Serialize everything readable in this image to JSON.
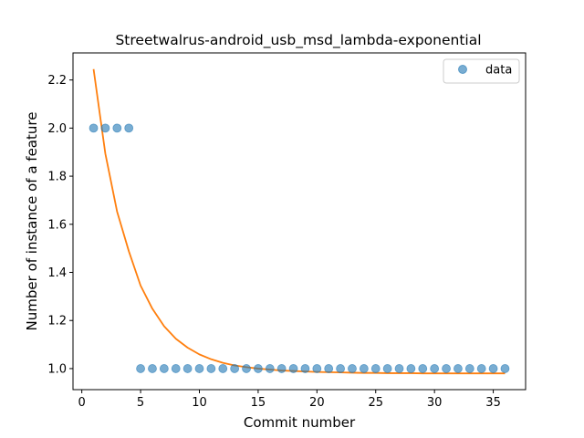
{
  "chart_data": {
    "type": "scatter",
    "title": "Streetwalrus-android_usb_msd_lambda-exponential",
    "xlabel": "Commit number",
    "ylabel": "Number of instance of a feature",
    "xlim": [
      -0.75,
      37.75
    ],
    "ylim": [
      0.9125,
      2.3125
    ],
    "xticks": [
      0,
      5,
      10,
      15,
      20,
      25,
      30,
      35
    ],
    "yticks": [
      1.0,
      1.2,
      1.4,
      1.6,
      1.8,
      2.0,
      2.2
    ],
    "ytick_labels": [
      "1.0",
      "1.2",
      "1.4",
      "1.6",
      "1.8",
      "2.0",
      "2.2"
    ],
    "grid": false,
    "legend_position": "top-right",
    "series": [
      {
        "name": "data",
        "kind": "points",
        "color": "#1f77b4",
        "x": [
          1,
          2,
          3,
          4,
          5,
          6,
          7,
          8,
          9,
          10,
          11,
          12,
          13,
          14,
          15,
          16,
          17,
          18,
          19,
          20,
          21,
          22,
          23,
          24,
          25,
          26,
          27,
          28,
          29,
          30,
          31,
          32,
          33,
          34,
          35,
          36
        ],
        "y": [
          2,
          2,
          2,
          2,
          1,
          1,
          1,
          1,
          1,
          1,
          1,
          1,
          1,
          1,
          1,
          1,
          1,
          1,
          1,
          1,
          1,
          1,
          1,
          1,
          1,
          1,
          1,
          1,
          1,
          1,
          1,
          1,
          1,
          1,
          1,
          1
        ]
      },
      {
        "kind": "line",
        "color": "#ff7f0e",
        "x": [
          1,
          2,
          3,
          4,
          5,
          6,
          7,
          8,
          9,
          10,
          11,
          12,
          13,
          14,
          15,
          16,
          17,
          18,
          19,
          20,
          21,
          22,
          23,
          24,
          25,
          26,
          27,
          28,
          29,
          30,
          31,
          32,
          33,
          34,
          35,
          36
        ],
        "y": [
          2.245,
          1.894,
          1.653,
          1.488,
          1.345,
          1.249,
          1.176,
          1.124,
          1.087,
          1.059,
          1.039,
          1.024,
          1.013,
          1.006,
          1.0,
          0.996,
          0.992,
          0.99,
          0.988,
          0.986,
          0.985,
          0.984,
          0.983,
          0.982,
          0.982,
          0.981,
          0.981,
          0.981,
          0.98,
          0.98,
          0.98,
          0.98,
          0.98,
          0.98,
          0.98,
          0.98
        ]
      }
    ]
  }
}
